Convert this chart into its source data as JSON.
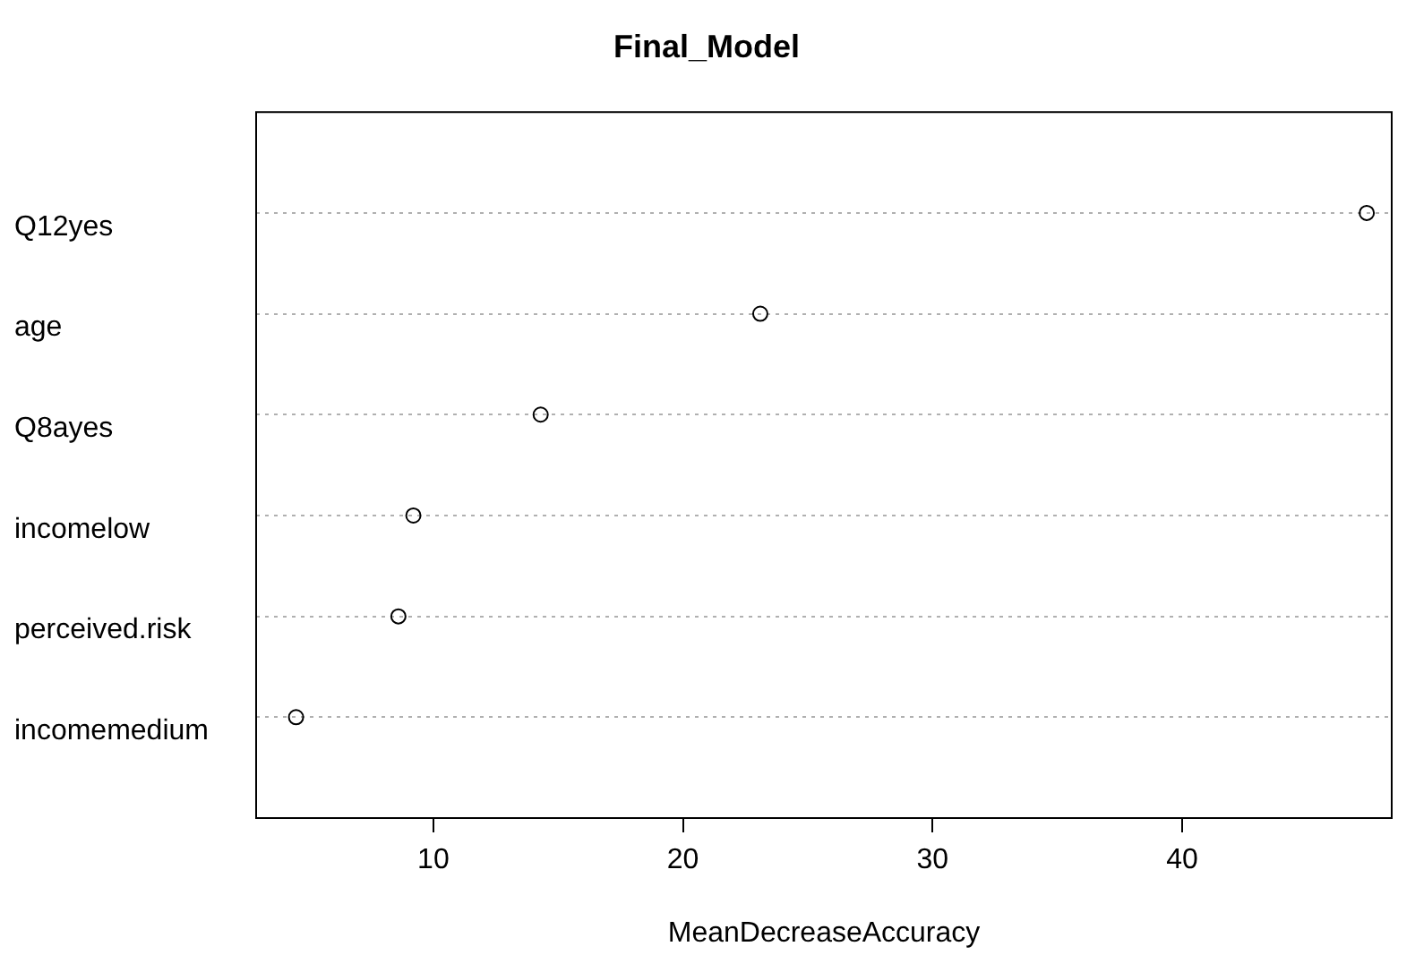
{
  "chart_data": {
    "type": "scatter",
    "orientation": "horizontal",
    "title": "Final_Model",
    "xlabel": "MeanDecreaseAccuracy",
    "categories": [
      "Q12yes",
      "age",
      "Q8ayes",
      "incomelow",
      "perceived.risk",
      "incomemedium"
    ],
    "values": [
      47.4,
      23.1,
      14.3,
      9.2,
      8.6,
      4.5
    ],
    "color": "#000000",
    "xlim": [
      2.9,
      48.4
    ],
    "xticks": [
      10,
      20,
      30,
      40
    ],
    "grid": "y",
    "legend": false,
    "marker": "circle",
    "line_style": "dotted"
  }
}
